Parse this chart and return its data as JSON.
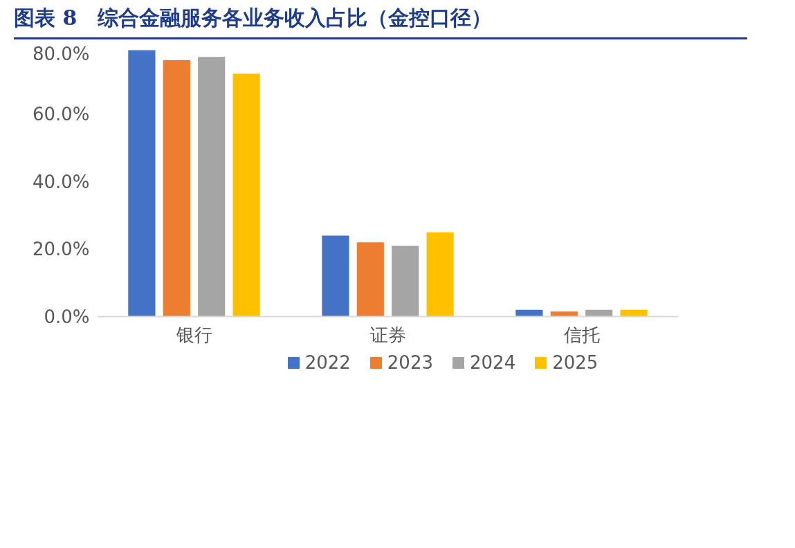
{
  "chart_data": {
    "type": "bar",
    "title": "图表 8　综合金融服务各业务收入占比（金控口径）",
    "categories": [
      "银行",
      "证券",
      "信托"
    ],
    "series": [
      {
        "name": "2022",
        "color": "#4472c4",
        "values": [
          79,
          24,
          2
        ]
      },
      {
        "name": "2023",
        "color": "#ed7d31",
        "values": [
          76,
          22,
          1.5
        ]
      },
      {
        "name": "2024",
        "color": "#a5a5a5",
        "values": [
          77,
          21,
          2
        ]
      },
      {
        "name": "2025",
        "color": "#ffc000",
        "values": [
          72,
          25,
          2
        ]
      }
    ],
    "ylim": [
      0,
      80
    ],
    "yticks": [
      {
        "value": 0,
        "label": "0.0%"
      },
      {
        "value": 20,
        "label": "20.0%"
      },
      {
        "value": 40,
        "label": "40.0%"
      },
      {
        "value": 60,
        "label": "60.0%"
      },
      {
        "value": 80,
        "label": "80.0%"
      }
    ],
    "grid": false,
    "legend": "bottom"
  }
}
